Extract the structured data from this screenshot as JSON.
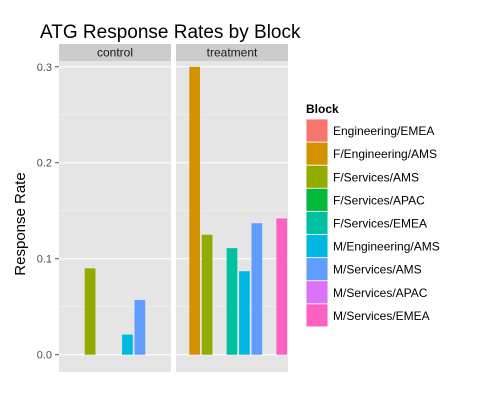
{
  "chart_data": {
    "type": "bar",
    "title": "ATG Response Rates by Block",
    "xlabel": "",
    "ylabel": "Response Rate",
    "ylim": [
      -0.018,
      0.306
    ],
    "yticks": [
      0.0,
      0.1,
      0.2,
      0.3
    ],
    "ytick_labels": [
      "0.0",
      "0.1",
      "0.2",
      "0.3"
    ],
    "grid": true,
    "legend": {
      "title": "Block",
      "placement": "right",
      "entries": [
        {
          "label": "Engineering/EMEA",
          "color": "#F8766D"
        },
        {
          "label": "F/Engineering/AMS",
          "color": "#D39200"
        },
        {
          "label": "F/Services/AMS",
          "color": "#93AA00"
        },
        {
          "label": "F/Services/APAC",
          "color": "#00BA38"
        },
        {
          "label": "F/Services/EMEA",
          "color": "#00C19F"
        },
        {
          "label": "M/Engineering/AMS",
          "color": "#00B9E3"
        },
        {
          "label": "M/Services/AMS",
          "color": "#619CFF"
        },
        {
          "label": "M/Services/APAC",
          "color": "#DB72FB"
        },
        {
          "label": "M/Services/EMEA",
          "color": "#FF61C3"
        }
      ]
    },
    "categories": [
      "Engineering/EMEA",
      "F/Engineering/AMS",
      "F/Services/AMS",
      "F/Services/APAC",
      "F/Services/EMEA",
      "M/Engineering/AMS",
      "M/Services/AMS",
      "M/Services/APAC",
      "M/Services/EMEA"
    ],
    "facets": [
      {
        "name": "control",
        "values": [
          null,
          null,
          0.09,
          null,
          null,
          0.021,
          0.057,
          null,
          null
        ]
      },
      {
        "name": "treatment",
        "values": [
          null,
          0.3,
          0.125,
          null,
          0.111,
          0.087,
          0.137,
          null,
          0.142
        ]
      }
    ]
  }
}
